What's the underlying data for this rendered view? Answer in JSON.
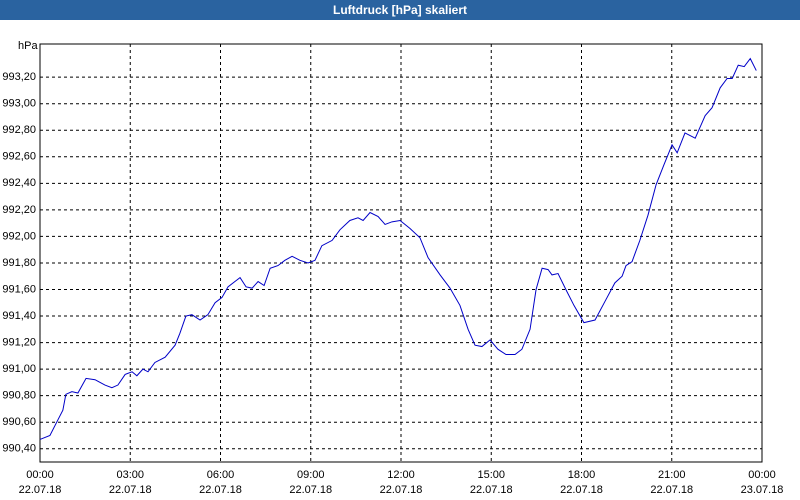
{
  "chart_data": {
    "type": "line",
    "title": "Luftdruck [hPa] skaliert",
    "y_label": "hPa",
    "color": "#0000c8",
    "grid": true,
    "xlim": [
      0,
      24
    ],
    "ylim": [
      990.3,
      993.45
    ],
    "xticks": [
      {
        "value": 0,
        "label": "00:00",
        "sublabel": "22.07.18"
      },
      {
        "value": 3,
        "label": "03:00",
        "sublabel": "22.07.18"
      },
      {
        "value": 6,
        "label": "06:00",
        "sublabel": "22.07.18"
      },
      {
        "value": 9,
        "label": "09:00",
        "sublabel": "22.07.18"
      },
      {
        "value": 12,
        "label": "12:00",
        "sublabel": "22.07.18"
      },
      {
        "value": 15,
        "label": "15:00",
        "sublabel": "22.07.18"
      },
      {
        "value": 18,
        "label": "18:00",
        "sublabel": "22.07.18"
      },
      {
        "value": 21,
        "label": "21:00",
        "sublabel": "22.07.18"
      },
      {
        "value": 24,
        "label": "00:00",
        "sublabel": "23.07.18"
      }
    ],
    "yticks": [
      {
        "value": 990.4,
        "label": "990,40"
      },
      {
        "value": 990.6,
        "label": "990,60"
      },
      {
        "value": 990.8,
        "label": "990,80"
      },
      {
        "value": 991.0,
        "label": "991,00"
      },
      {
        "value": 991.2,
        "label": "991,20"
      },
      {
        "value": 991.4,
        "label": "991,40"
      },
      {
        "value": 991.6,
        "label": "991,60"
      },
      {
        "value": 991.8,
        "label": "991,80"
      },
      {
        "value": 992.0,
        "label": "992,00"
      },
      {
        "value": 992.2,
        "label": "992,20"
      },
      {
        "value": 992.4,
        "label": "992,40"
      },
      {
        "value": 992.6,
        "label": "992,60"
      },
      {
        "value": 992.8,
        "label": "992,80"
      },
      {
        "value": 993.0,
        "label": "993,00"
      },
      {
        "value": 993.2,
        "label": "993,20"
      }
    ],
    "x": [
      0.0,
      0.33,
      0.6,
      0.76,
      0.86,
      1.06,
      1.26,
      1.53,
      1.83,
      2.16,
      2.39,
      2.59,
      2.83,
      3.06,
      3.22,
      3.42,
      3.59,
      3.82,
      4.16,
      4.49,
      4.65,
      4.85,
      5.05,
      5.32,
      5.58,
      5.82,
      6.05,
      6.25,
      6.48,
      6.65,
      6.85,
      7.05,
      7.25,
      7.45,
      7.65,
      7.91,
      8.14,
      8.38,
      8.64,
      8.91,
      9.14,
      9.37,
      9.71,
      9.97,
      10.3,
      10.57,
      10.74,
      10.97,
      11.24,
      11.47,
      11.7,
      11.97,
      12.3,
      12.63,
      12.9,
      13.3,
      13.63,
      13.96,
      14.23,
      14.46,
      14.69,
      14.96,
      15.22,
      15.49,
      15.79,
      16.02,
      16.29,
      16.49,
      16.69,
      16.89,
      17.02,
      17.22,
      17.48,
      17.75,
      18.08,
      18.45,
      18.78,
      19.11,
      19.35,
      19.48,
      19.68,
      19.94,
      20.21,
      20.48,
      20.74,
      21.01,
      21.18,
      21.44,
      21.78,
      22.11,
      22.34,
      22.61,
      22.84,
      23.01,
      23.21,
      23.41,
      23.61,
      23.81
    ],
    "values": [
      990.47,
      990.5,
      990.62,
      990.69,
      990.81,
      990.83,
      990.82,
      990.93,
      990.92,
      990.88,
      990.86,
      990.88,
      990.96,
      990.98,
      990.95,
      991.0,
      990.98,
      991.05,
      991.09,
      991.18,
      991.27,
      991.4,
      991.41,
      991.37,
      991.41,
      991.5,
      991.54,
      991.62,
      991.66,
      991.69,
      991.62,
      991.61,
      991.66,
      991.63,
      991.76,
      991.78,
      991.82,
      991.85,
      991.82,
      991.8,
      991.82,
      991.93,
      991.97,
      992.05,
      992.12,
      992.14,
      992.12,
      992.18,
      992.15,
      992.09,
      992.11,
      992.12,
      992.06,
      991.99,
      991.84,
      991.71,
      991.61,
      991.48,
      991.3,
      991.18,
      991.17,
      991.22,
      991.15,
      991.11,
      991.11,
      991.15,
      991.3,
      991.6,
      991.76,
      991.75,
      991.71,
      991.72,
      991.6,
      991.48,
      991.35,
      991.37,
      991.51,
      991.65,
      991.7,
      991.78,
      991.81,
      991.97,
      992.16,
      992.39,
      992.54,
      992.69,
      992.63,
      992.78,
      992.74,
      992.91,
      992.97,
      993.12,
      993.19,
      993.19,
      993.29,
      993.28,
      993.34,
      993.25
    ]
  }
}
